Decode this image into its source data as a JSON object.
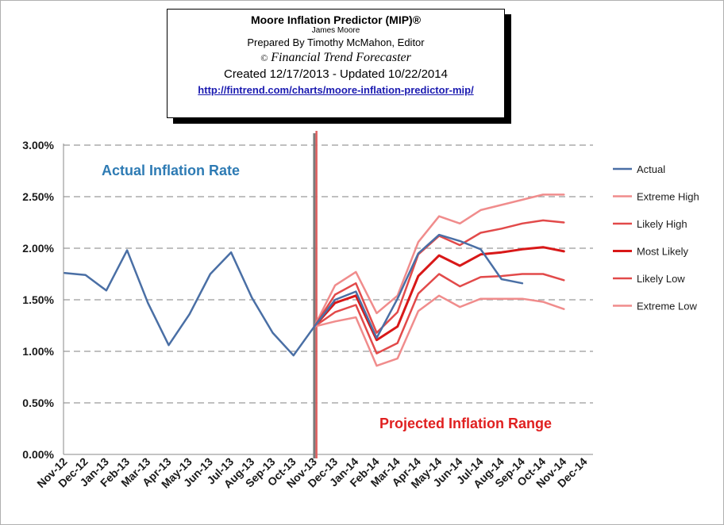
{
  "header": {
    "title": "Moore Inflation Predictor (MIP)®",
    "author": "James Moore",
    "prepared_by": "Prepared  By Timothy McMahon, Editor",
    "copyright_symbol": "©",
    "publisher": "Financial Trend Forecaster",
    "dates": "Created  12/17/2013 - Updated 10/22/2014",
    "url": "http://fintrend.com/charts/moore-inflation-predictor-mip/"
  },
  "chart_data": {
    "type": "line",
    "categories": [
      "Nov-12",
      "Dec-12",
      "Jan-13",
      "Feb-13",
      "Mar-13",
      "Apr-13",
      "May-13",
      "Jun-13",
      "Jul-13",
      "Aug-13",
      "Sep-13",
      "Oct-13",
      "Nov-13",
      "Dec-13",
      "Jan-14",
      "Feb-14",
      "Mar-14",
      "Apr-14",
      "May-14",
      "Jun-14",
      "Jul-14",
      "Aug-14",
      "Sep-14",
      "Oct-14",
      "Nov-14",
      "Dec-14"
    ],
    "ylim": [
      0,
      3.0
    ],
    "yticks": [
      "0.00%",
      "0.50%",
      "1.00%",
      "1.50%",
      "2.00%",
      "2.50%",
      "3.00%"
    ],
    "grid": true,
    "legend_position": "right",
    "annotations": {
      "actual": "Actual Inflation Rate",
      "projected": "Projected Inflation Range"
    },
    "divider_at": "Nov-13",
    "series": [
      {
        "name": "Actual",
        "color": "#4a6fa5",
        "width": 2.5,
        "values": [
          1.76,
          1.74,
          1.59,
          1.98,
          1.47,
          1.06,
          1.36,
          1.75,
          1.96,
          1.52,
          1.18,
          0.96,
          1.24,
          1.5,
          1.58,
          1.13,
          1.51,
          1.95,
          2.13,
          2.07,
          1.99,
          1.7,
          1.66,
          null,
          null,
          null
        ]
      },
      {
        "name": "Extreme High",
        "color": "#f08c8c",
        "width": 2.5,
        "values": [
          null,
          null,
          null,
          null,
          null,
          null,
          null,
          null,
          null,
          null,
          null,
          null,
          1.24,
          1.64,
          1.77,
          1.37,
          1.54,
          2.06,
          2.31,
          2.24,
          2.37,
          2.42,
          2.47,
          2.52,
          2.52,
          null
        ]
      },
      {
        "name": "Likely High",
        "color": "#e24a4a",
        "width": 2.5,
        "values": [
          null,
          null,
          null,
          null,
          null,
          null,
          null,
          null,
          null,
          null,
          null,
          null,
          1.24,
          1.55,
          1.66,
          1.18,
          1.38,
          1.94,
          2.12,
          2.03,
          2.15,
          2.19,
          2.24,
          2.27,
          2.25,
          null
        ]
      },
      {
        "name": "Most Likely",
        "color": "#d81818",
        "width": 3,
        "values": [
          null,
          null,
          null,
          null,
          null,
          null,
          null,
          null,
          null,
          null,
          null,
          null,
          1.24,
          1.47,
          1.54,
          1.11,
          1.24,
          1.73,
          1.93,
          1.83,
          1.94,
          1.96,
          1.99,
          2.01,
          1.97,
          null
        ]
      },
      {
        "name": "Likely Low",
        "color": "#e24a4a",
        "width": 2.5,
        "values": [
          null,
          null,
          null,
          null,
          null,
          null,
          null,
          null,
          null,
          null,
          null,
          null,
          1.24,
          1.38,
          1.45,
          0.98,
          1.08,
          1.56,
          1.75,
          1.63,
          1.72,
          1.73,
          1.75,
          1.75,
          1.69,
          null
        ]
      },
      {
        "name": "Extreme Low",
        "color": "#f08c8c",
        "width": 2.5,
        "values": [
          null,
          null,
          null,
          null,
          null,
          null,
          null,
          null,
          null,
          null,
          null,
          null,
          1.24,
          1.29,
          1.33,
          0.86,
          0.93,
          1.39,
          1.54,
          1.43,
          1.51,
          1.51,
          1.51,
          1.48,
          1.41,
          null
        ]
      }
    ]
  }
}
